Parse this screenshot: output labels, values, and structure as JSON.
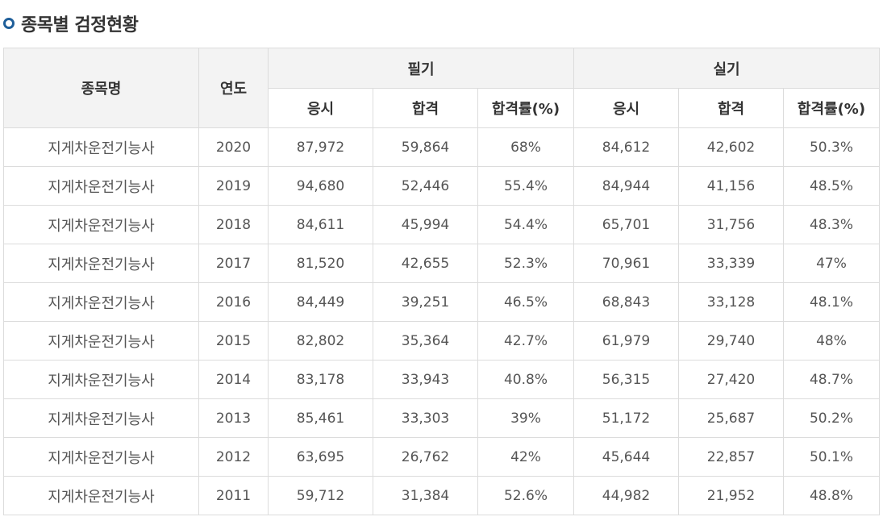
{
  "page": {
    "title": "종목별 검정현황"
  },
  "table": {
    "headers": {
      "name": "종목명",
      "year": "연도",
      "written": "필기",
      "practical": "실기",
      "applicants": "응시",
      "passed": "합격",
      "rate": "합격률(%)"
    },
    "rows": [
      {
        "name": "지게차운전기능사",
        "year": "2020",
        "w_app": "87,972",
        "w_pass": "59,864",
        "w_rate": "68%",
        "p_app": "84,612",
        "p_pass": "42,602",
        "p_rate": "50.3%"
      },
      {
        "name": "지게차운전기능사",
        "year": "2019",
        "w_app": "94,680",
        "w_pass": "52,446",
        "w_rate": "55.4%",
        "p_app": "84,944",
        "p_pass": "41,156",
        "p_rate": "48.5%"
      },
      {
        "name": "지게차운전기능사",
        "year": "2018",
        "w_app": "84,611",
        "w_pass": "45,994",
        "w_rate": "54.4%",
        "p_app": "65,701",
        "p_pass": "31,756",
        "p_rate": "48.3%"
      },
      {
        "name": "지게차운전기능사",
        "year": "2017",
        "w_app": "81,520",
        "w_pass": "42,655",
        "w_rate": "52.3%",
        "p_app": "70,961",
        "p_pass": "33,339",
        "p_rate": "47%"
      },
      {
        "name": "지게차운전기능사",
        "year": "2016",
        "w_app": "84,449",
        "w_pass": "39,251",
        "w_rate": "46.5%",
        "p_app": "68,843",
        "p_pass": "33,128",
        "p_rate": "48.1%"
      },
      {
        "name": "지게차운전기능사",
        "year": "2015",
        "w_app": "82,802",
        "w_pass": "35,364",
        "w_rate": "42.7%",
        "p_app": "61,979",
        "p_pass": "29,740",
        "p_rate": "48%"
      },
      {
        "name": "지게차운전기능사",
        "year": "2014",
        "w_app": "83,178",
        "w_pass": "33,943",
        "w_rate": "40.8%",
        "p_app": "56,315",
        "p_pass": "27,420",
        "p_rate": "48.7%"
      },
      {
        "name": "지게차운전기능사",
        "year": "2013",
        "w_app": "85,461",
        "w_pass": "33,303",
        "w_rate": "39%",
        "p_app": "51,172",
        "p_pass": "25,687",
        "p_rate": "50.2%"
      },
      {
        "name": "지게차운전기능사",
        "year": "2012",
        "w_app": "63,695",
        "w_pass": "26,762",
        "w_rate": "42%",
        "p_app": "45,644",
        "p_pass": "22,857",
        "p_rate": "50.1%"
      },
      {
        "name": "지게차운전기능사",
        "year": "2011",
        "w_app": "59,712",
        "w_pass": "31,384",
        "w_rate": "52.6%",
        "p_app": "44,982",
        "p_pass": "21,952",
        "p_rate": "48.8%"
      }
    ]
  }
}
